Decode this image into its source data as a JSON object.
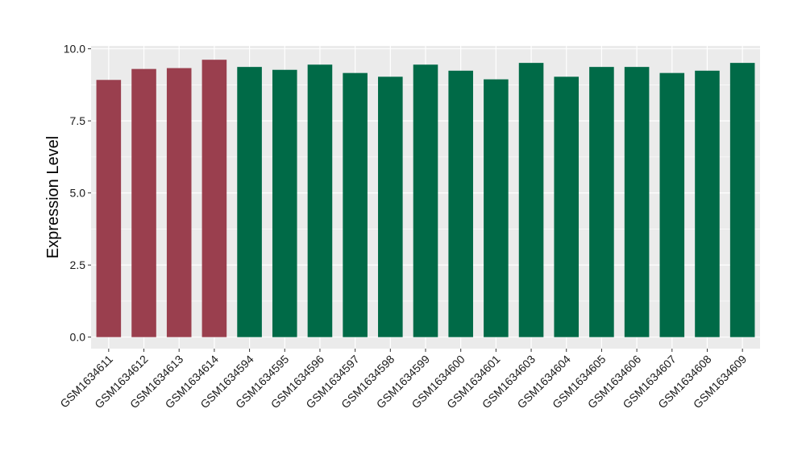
{
  "chart_data": {
    "type": "bar",
    "title": "",
    "xlabel": "",
    "ylabel": "Expression Level",
    "ylim": [
      -0.4,
      10.1
    ],
    "yticks": [
      "0.0",
      "2.5",
      "5.0",
      "7.5",
      "10.0"
    ],
    "ytick_values": [
      0,
      2.5,
      5,
      7.5,
      10
    ],
    "grid": true,
    "legend": "none",
    "panel_background": "#ebebeb",
    "grid_color": "#ffffff",
    "categories": [
      "GSM1634611",
      "GSM1634612",
      "GSM1634613",
      "GSM1634614",
      "GSM1634594",
      "GSM1634595",
      "GSM1634596",
      "GSM1634597",
      "GSM1634598",
      "GSM1634599",
      "GSM1634600",
      "GSM1634601",
      "GSM1634603",
      "GSM1634604",
      "GSM1634605",
      "GSM1634606",
      "GSM1634607",
      "GSM1634608",
      "GSM1634609"
    ],
    "values": [
      8.92,
      9.3,
      9.33,
      9.62,
      9.37,
      9.27,
      9.45,
      9.16,
      9.03,
      9.45,
      9.24,
      8.94,
      9.51,
      9.03,
      9.37,
      9.37,
      9.16,
      9.24,
      9.51
    ],
    "bar_colors": [
      "#9a3f4e",
      "#9a3f4e",
      "#9a3f4e",
      "#9a3f4e",
      "#006a47",
      "#006a47",
      "#006a47",
      "#006a47",
      "#006a47",
      "#006a47",
      "#006a47",
      "#006a47",
      "#006a47",
      "#006a47",
      "#006a47",
      "#006a47",
      "#006a47",
      "#006a47",
      "#006a47"
    ]
  }
}
